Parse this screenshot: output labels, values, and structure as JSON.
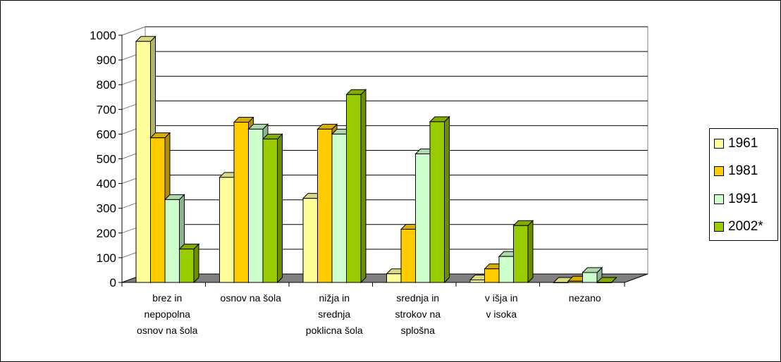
{
  "chart_data": {
    "type": "bar",
    "title": "",
    "xlabel": "",
    "ylabel": "",
    "ylim": [
      0,
      1000
    ],
    "yticks": [
      0,
      100,
      200,
      300,
      400,
      500,
      600,
      700,
      800,
      900,
      1000
    ],
    "grid": true,
    "legend_position": "right",
    "categories": [
      [
        "brez in",
        "nepopolna",
        "osnov na šola"
      ],
      [
        "osnov na šola"
      ],
      [
        "nižja in",
        "srednja",
        "poklicna šola"
      ],
      [
        "srednja in",
        "strokov na",
        "splošna"
      ],
      [
        "v išja in",
        "v isoka"
      ],
      [
        "nezano"
      ]
    ],
    "series": [
      {
        "name": "1961",
        "color": "#FFFF99",
        "side": "#B3B36B",
        "top": "#D9D982",
        "values": [
          975,
          425,
          340,
          35,
          10,
          0
        ]
      },
      {
        "name": "1981",
        "color": "#FFCC00",
        "side": "#B38F00",
        "top": "#D9AD00",
        "values": [
          585,
          648,
          620,
          215,
          55,
          5
        ]
      },
      {
        "name": "1991",
        "color": "#CCFFCC",
        "side": "#8FB38F",
        "top": "#ADD9AD",
        "values": [
          335,
          620,
          600,
          520,
          105,
          40
        ]
      },
      {
        "name": "2002*",
        "color": "#99CC00",
        "side": "#6B8F00",
        "top": "#82AD00",
        "values": [
          135,
          580,
          760,
          650,
          230,
          0
        ]
      }
    ]
  }
}
